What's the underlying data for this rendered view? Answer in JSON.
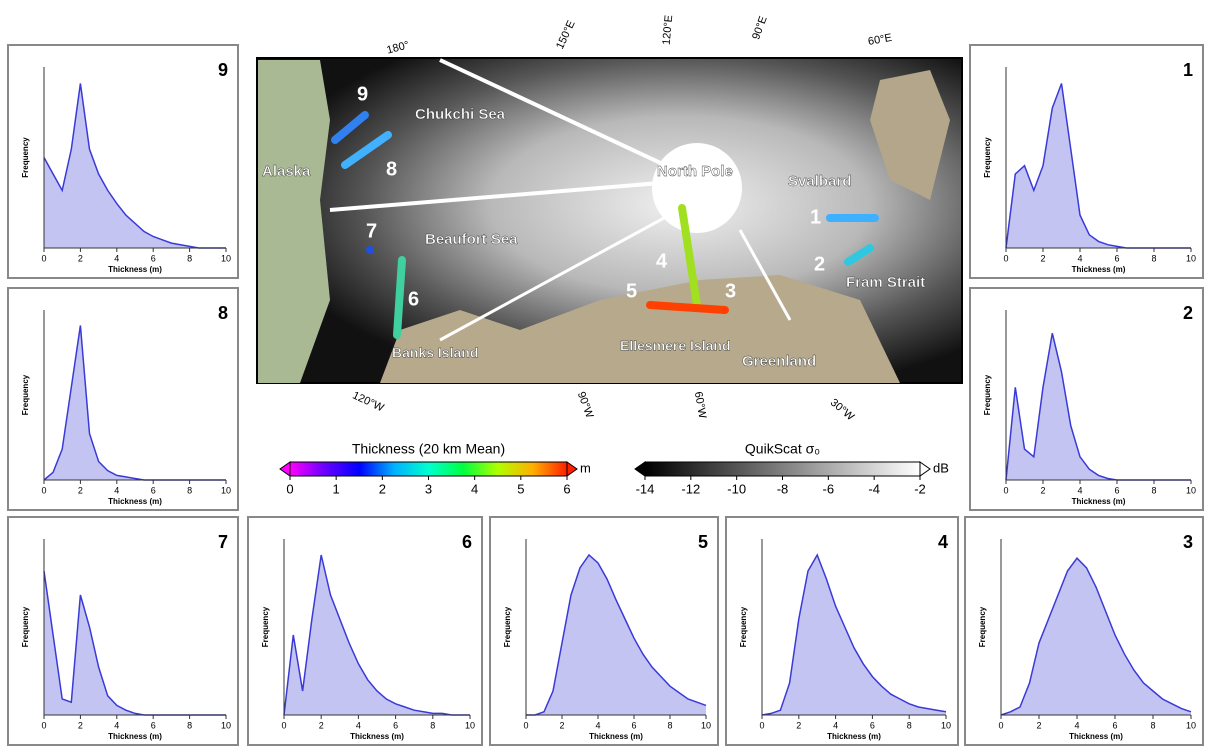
{
  "chart_data": [
    {
      "type": "area",
      "label": "9",
      "xlabel": "Thickness (m)",
      "ylabel": "Frequency",
      "color": "#3a3ad8",
      "fill": "#c4c4f2",
      "xlim": [
        0,
        10
      ],
      "xticks": [
        0,
        2,
        4,
        6,
        8,
        10
      ],
      "ylim": [
        0,
        1.1
      ],
      "x": [
        0,
        0.5,
        1,
        1.5,
        2,
        2.5,
        3,
        3.5,
        4,
        4.5,
        5,
        5.5,
        6,
        6.5,
        7,
        7.5,
        8,
        8.5,
        9,
        9.5,
        10
      ],
      "values": [
        0.55,
        0.45,
        0.35,
        0.6,
        1.0,
        0.6,
        0.45,
        0.35,
        0.27,
        0.2,
        0.15,
        0.1,
        0.07,
        0.05,
        0.03,
        0.02,
        0.01,
        0,
        0,
        0,
        0
      ]
    },
    {
      "type": "area",
      "label": "8",
      "xlabel": "Thickness (m)",
      "ylabel": "Frequency",
      "color": "#3a3ad8",
      "fill": "#c4c4f2",
      "xlim": [
        0,
        10
      ],
      "xticks": [
        0,
        2,
        4,
        6,
        8,
        10
      ],
      "ylim": [
        0,
        1.1
      ],
      "x": [
        0,
        0.5,
        1,
        1.5,
        2,
        2.5,
        3,
        3.5,
        4,
        4.5,
        5,
        5.5,
        6,
        6.5,
        7,
        7.5,
        8,
        8.5,
        9,
        9.5,
        10
      ],
      "values": [
        0,
        0.05,
        0.2,
        0.6,
        1.0,
        0.3,
        0.12,
        0.06,
        0.03,
        0.02,
        0.01,
        0,
        0,
        0,
        0,
        0,
        0,
        0,
        0,
        0,
        0
      ]
    },
    {
      "type": "area",
      "label": "7",
      "xlabel": "Thickness (m)",
      "ylabel": "Frequency",
      "color": "#3a3ad8",
      "fill": "#c4c4f2",
      "xlim": [
        0,
        10
      ],
      "xticks": [
        0,
        2,
        4,
        6,
        8,
        10
      ],
      "ylim": [
        0,
        1.1
      ],
      "x": [
        0,
        0.5,
        1,
        1.5,
        2,
        2.5,
        3,
        3.5,
        4,
        4.5,
        5,
        5.5,
        6,
        6.5,
        7,
        7.5,
        8,
        8.5,
        9,
        9.5,
        10
      ],
      "values": [
        0.9,
        0.5,
        0.1,
        0.08,
        0.75,
        0.55,
        0.3,
        0.12,
        0.06,
        0.03,
        0.01,
        0,
        0,
        0,
        0,
        0,
        0,
        0,
        0,
        0,
        0
      ]
    },
    {
      "type": "area",
      "label": "6",
      "xlabel": "Thickness (m)",
      "ylabel": "Frequency",
      "color": "#3a3ad8",
      "fill": "#c4c4f2",
      "xlim": [
        0,
        10
      ],
      "xticks": [
        0,
        2,
        4,
        6,
        8,
        10
      ],
      "ylim": [
        0,
        1.1
      ],
      "x": [
        0,
        0.5,
        1,
        1.5,
        2,
        2.5,
        3,
        3.5,
        4,
        4.5,
        5,
        5.5,
        6,
        6.5,
        7,
        7.5,
        8,
        8.5,
        9,
        9.5,
        10
      ],
      "values": [
        0,
        0.5,
        0.15,
        0.6,
        1.0,
        0.75,
        0.6,
        0.45,
        0.32,
        0.22,
        0.15,
        0.1,
        0.07,
        0.05,
        0.03,
        0.02,
        0.01,
        0.01,
        0,
        0,
        0
      ]
    },
    {
      "type": "area",
      "label": "5",
      "xlabel": "Thickness (m)",
      "ylabel": "Frequency",
      "color": "#3a3ad8",
      "fill": "#c4c4f2",
      "xlim": [
        0,
        10
      ],
      "xticks": [
        0,
        2,
        4,
        6,
        8,
        10
      ],
      "ylim": [
        0,
        1.1
      ],
      "x": [
        0,
        0.5,
        1,
        1.5,
        2,
        2.5,
        3,
        3.5,
        4,
        4.5,
        5,
        5.5,
        6,
        6.5,
        7,
        7.5,
        8,
        8.5,
        9,
        9.5,
        10
      ],
      "values": [
        0,
        0,
        0.02,
        0.15,
        0.45,
        0.75,
        0.92,
        1.0,
        0.95,
        0.85,
        0.72,
        0.6,
        0.48,
        0.38,
        0.3,
        0.24,
        0.18,
        0.14,
        0.1,
        0.08,
        0.06
      ]
    },
    {
      "type": "area",
      "label": "4",
      "xlabel": "Thickness (m)",
      "ylabel": "Frequency",
      "color": "#3a3ad8",
      "fill": "#c4c4f2",
      "xlim": [
        0,
        10
      ],
      "xticks": [
        0,
        2,
        4,
        6,
        8,
        10
      ],
      "ylim": [
        0,
        1.1
      ],
      "x": [
        0,
        0.5,
        1,
        1.5,
        2,
        2.5,
        3,
        3.5,
        4,
        4.5,
        5,
        5.5,
        6,
        6.5,
        7,
        7.5,
        8,
        8.5,
        9,
        9.5,
        10
      ],
      "values": [
        0,
        0.01,
        0.03,
        0.2,
        0.6,
        0.9,
        1.0,
        0.85,
        0.68,
        0.55,
        0.42,
        0.32,
        0.24,
        0.18,
        0.13,
        0.1,
        0.07,
        0.05,
        0.04,
        0.03,
        0.02
      ]
    },
    {
      "type": "area",
      "label": "3",
      "xlabel": "Thickness (m)",
      "ylabel": "Frequency",
      "color": "#3a3ad8",
      "fill": "#c4c4f2",
      "xlim": [
        0,
        10
      ],
      "xticks": [
        0,
        2,
        4,
        6,
        8,
        10
      ],
      "ylim": [
        0,
        1.1
      ],
      "x": [
        0,
        0.5,
        1,
        1.5,
        2,
        2.5,
        3,
        3.5,
        4,
        4.5,
        5,
        5.5,
        6,
        6.5,
        7,
        7.5,
        8,
        8.5,
        9,
        9.5,
        10
      ],
      "values": [
        0,
        0.02,
        0.05,
        0.2,
        0.45,
        0.6,
        0.75,
        0.9,
        0.98,
        0.92,
        0.8,
        0.65,
        0.5,
        0.38,
        0.28,
        0.2,
        0.15,
        0.1,
        0.07,
        0.04,
        0.02
      ]
    },
    {
      "type": "area",
      "label": "1",
      "xlabel": "Thickness (m)",
      "ylabel": "Frequency",
      "color": "#3a3ad8",
      "fill": "#c4c4f2",
      "xlim": [
        0,
        10
      ],
      "xticks": [
        0,
        2,
        4,
        6,
        8,
        10
      ],
      "ylim": [
        0,
        1.1
      ],
      "x": [
        0,
        0.5,
        1,
        1.5,
        2,
        2.5,
        3,
        3.5,
        4,
        4.5,
        5,
        5.5,
        6,
        6.5,
        7,
        7.5,
        8,
        8.5,
        9,
        9.5,
        10
      ],
      "values": [
        0,
        0.45,
        0.5,
        0.35,
        0.5,
        0.85,
        1.0,
        0.6,
        0.2,
        0.08,
        0.04,
        0.02,
        0.01,
        0,
        0,
        0,
        0,
        0,
        0,
        0,
        0
      ]
    },
    {
      "type": "area",
      "label": "2",
      "xlabel": "Thickness (m)",
      "ylabel": "Frequency",
      "color": "#3a3ad8",
      "fill": "#c4c4f2",
      "xlim": [
        0,
        10
      ],
      "xticks": [
        0,
        2,
        4,
        6,
        8,
        10
      ],
      "ylim": [
        0,
        1.1
      ],
      "x": [
        0,
        0.5,
        1,
        1.5,
        2,
        2.5,
        3,
        3.5,
        4,
        4.5,
        5,
        5.5,
        6,
        6.5,
        7,
        7.5,
        8,
        8.5,
        9,
        9.5,
        10
      ],
      "values": [
        0,
        0.6,
        0.2,
        0.15,
        0.6,
        0.95,
        0.7,
        0.35,
        0.15,
        0.07,
        0.03,
        0.01,
        0,
        0,
        0,
        0,
        0,
        0,
        0,
        0,
        0
      ]
    },
    {
      "type": "colorbar",
      "title": "Thickness (20 km Mean)",
      "unit": "m",
      "xlim": [
        0,
        6
      ],
      "xticks": [
        0,
        1,
        2,
        3,
        4,
        5,
        6
      ],
      "colors": [
        "#ff00ff",
        "#6a00ff",
        "#0000ff",
        "#00b0ff",
        "#00ffd0",
        "#00ff40",
        "#b0ff00",
        "#ffb000",
        "#ff2000"
      ]
    },
    {
      "type": "colorbar",
      "title": "QuikScat σ₀",
      "unit": "dB",
      "xlim": [
        -14,
        -2
      ],
      "xticks": [
        -14,
        -12,
        -10,
        -8,
        -6,
        -4,
        -2
      ],
      "colors": [
        "#000000",
        "#ffffff"
      ]
    }
  ],
  "map": {
    "places": [
      "Chukchi Sea",
      "Alaska",
      "Beaufort Sea",
      "North Pole",
      "Svalbard",
      "Fram Strait",
      "Ellesmere Island",
      "Banks Island",
      "Greenland"
    ],
    "tracks": [
      "1",
      "2",
      "3",
      "4",
      "5",
      "6",
      "7",
      "8",
      "9"
    ],
    "longitudes": [
      "180°",
      "150°E",
      "120°E",
      "90°E",
      "60°E",
      "120°W",
      "90°W",
      "60°W",
      "30°W"
    ]
  }
}
